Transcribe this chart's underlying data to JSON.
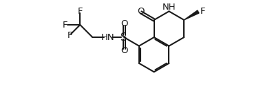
{
  "bg_color": "#ffffff",
  "line_color": "#1a1a1a",
  "line_width": 1.5,
  "font_size": 9.5,
  "font_color": "#1a1a1a",
  "xlim": [
    0,
    10.5
  ],
  "ylim": [
    0,
    4.2
  ],
  "figsize": [
    3.95,
    1.48
  ],
  "dpi": 100
}
